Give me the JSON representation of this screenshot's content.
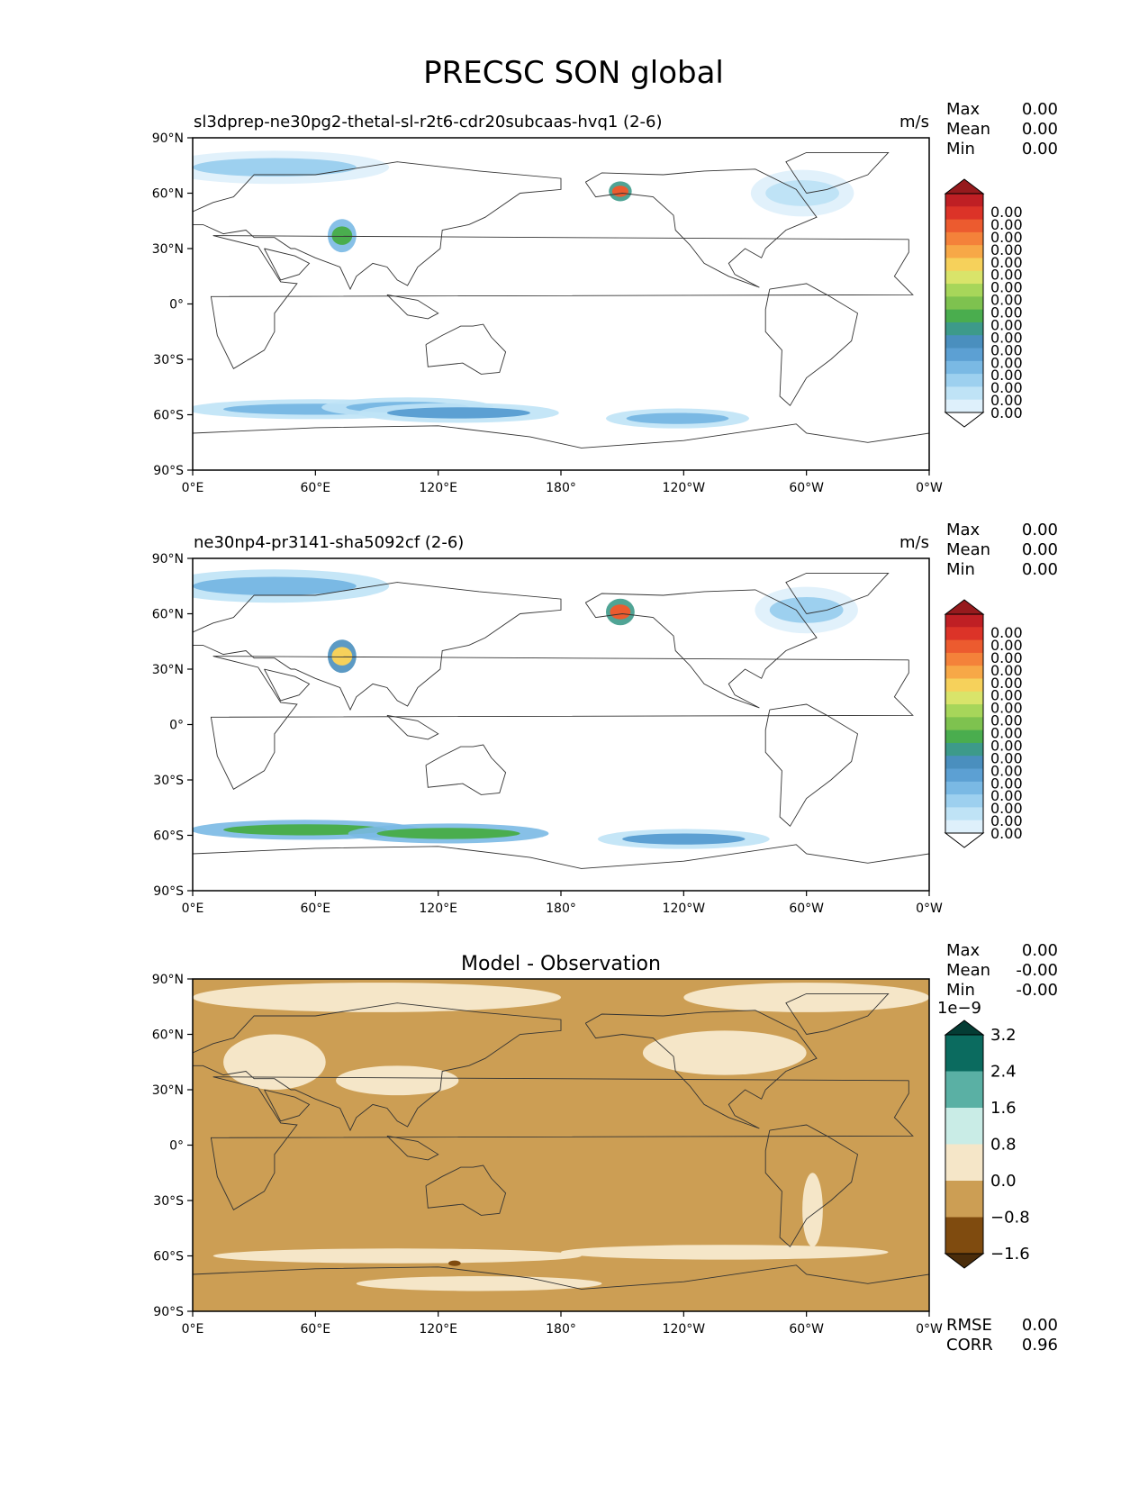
{
  "figure": {
    "title": "PRECSC SON global"
  },
  "axes": {
    "lat_ticks": [
      "90°N",
      "60°N",
      "30°N",
      "0°",
      "30°S",
      "60°S",
      "90°S"
    ],
    "lon_ticks": [
      "0°E",
      "60°E",
      "120°E",
      "180°",
      "120°W",
      "60°W",
      "0°W"
    ]
  },
  "colors": {
    "precip_levels": [
      "#ffffff",
      "#def0fb",
      "#bfe3f6",
      "#9dd0ef",
      "#7ab9e4",
      "#5ca0d3",
      "#4a8fbe",
      "#3d9a8a",
      "#4aad4e",
      "#7ec24f",
      "#a7d65a",
      "#d9e46a",
      "#f6d15b",
      "#f7a847",
      "#f4823a",
      "#ec5b2f",
      "#dc3328",
      "#bf1f24",
      "#961a1d"
    ],
    "diff_levels": [
      "#4a2c0a",
      "#7f4b0f",
      "#cc9e54",
      "#f5e6c8",
      "#c9ece6",
      "#5ab0a4",
      "#0b6b5f",
      "#043c34"
    ],
    "coastline": "#333333",
    "axis": "#000000"
  },
  "chart_data": [
    {
      "type": "heatmap",
      "panel": "model",
      "title": "sl3dprep-ne30pg2-thetal-sl-r2t6-cdr20subcaas-hvq1 (2-6)",
      "units": "m/s",
      "stats": [
        {
          "label": "Max",
          "value": "0.00"
        },
        {
          "label": "Mean",
          "value": "0.00"
        },
        {
          "label": "Min",
          "value": "0.00"
        }
      ],
      "colorbar_ticks": [
        "0.00",
        "0.00",
        "0.00",
        "0.00",
        "0.00",
        "0.00",
        "0.00",
        "0.00",
        "0.00",
        "0.00",
        "0.00",
        "0.00",
        "0.00",
        "0.00",
        "0.00",
        "0.00",
        "0.00"
      ],
      "colorbar_extend": "both",
      "xlim": [
        0,
        360
      ],
      "ylim": [
        -90,
        90
      ],
      "features": [
        {
          "lon": 60,
          "lat": -57,
          "w": 45,
          "h": 3,
          "level": 4
        },
        {
          "lon": 105,
          "lat": -56,
          "w": 30,
          "h": 3,
          "level": 4
        },
        {
          "lon": 130,
          "lat": -59,
          "w": 35,
          "h": 3,
          "level": 5
        },
        {
          "lon": 237,
          "lat": -62,
          "w": 25,
          "h": 3,
          "level": 4
        },
        {
          "lon": 40,
          "lat": 74,
          "w": 40,
          "h": 5,
          "level": 3
        },
        {
          "lon": 73,
          "lat": 37,
          "w": 5,
          "h": 5,
          "level": 8
        },
        {
          "lon": 209,
          "lat": 61,
          "w": 4,
          "h": 3,
          "level": 15
        },
        {
          "lon": 298,
          "lat": 60,
          "w": 18,
          "h": 7,
          "level": 2
        }
      ]
    },
    {
      "type": "heatmap",
      "panel": "observation",
      "title": "ne30np4-pr3141-sha5092cf (2-6)",
      "units": "m/s",
      "stats": [
        {
          "label": "Max",
          "value": "0.00"
        },
        {
          "label": "Mean",
          "value": "0.00"
        },
        {
          "label": "Min",
          "value": "0.00"
        }
      ],
      "colorbar_ticks": [
        "0.00",
        "0.00",
        "0.00",
        "0.00",
        "0.00",
        "0.00",
        "0.00",
        "0.00",
        "0.00",
        "0.00",
        "0.00",
        "0.00",
        "0.00",
        "0.00",
        "0.00",
        "0.00",
        "0.00"
      ],
      "colorbar_extend": "both",
      "xlim": [
        0,
        360
      ],
      "ylim": [
        -90,
        90
      ],
      "features": [
        {
          "lon": 55,
          "lat": -57,
          "w": 40,
          "h": 3,
          "level": 8
        },
        {
          "lon": 125,
          "lat": -59,
          "w": 35,
          "h": 3,
          "level": 8
        },
        {
          "lon": 240,
          "lat": -62,
          "w": 30,
          "h": 3,
          "level": 5
        },
        {
          "lon": 40,
          "lat": 75,
          "w": 40,
          "h": 5,
          "level": 4
        },
        {
          "lon": 73,
          "lat": 37,
          "w": 5,
          "h": 5,
          "level": 12
        },
        {
          "lon": 209,
          "lat": 61,
          "w": 5,
          "h": 4,
          "level": 15
        },
        {
          "lon": 300,
          "lat": 62,
          "w": 18,
          "h": 7,
          "level": 3
        }
      ]
    },
    {
      "type": "heatmap",
      "panel": "difference",
      "title": "Model - Observation",
      "units": "",
      "stats": [
        {
          "label": "Max",
          "value": "0.00"
        },
        {
          "label": "Mean",
          "value": "-0.00"
        },
        {
          "label": "Min",
          "value": "-0.00"
        }
      ],
      "colorbar_ticks": [
        "3.2",
        "2.4",
        "1.6",
        "0.8",
        "0.0",
        "−0.8",
        "−1.6"
      ],
      "colorbar_multiplier": "1e−9",
      "colorbar_extend": "both",
      "metrics": [
        {
          "label": "RMSE",
          "value": "0.00"
        },
        {
          "label": "CORR",
          "value": "0.96"
        }
      ],
      "xlim": [
        0,
        360
      ],
      "ylim": [
        -90,
        90
      ],
      "features": [
        {
          "lon": 90,
          "lat": 80,
          "w": 90,
          "h": 8,
          "level": 3
        },
        {
          "lon": 300,
          "lat": 80,
          "w": 60,
          "h": 8,
          "level": 3
        },
        {
          "lon": 40,
          "lat": 45,
          "w": 25,
          "h": 15,
          "level": 3
        },
        {
          "lon": 100,
          "lat": 35,
          "w": 30,
          "h": 8,
          "level": 3
        },
        {
          "lon": 260,
          "lat": 50,
          "w": 40,
          "h": 12,
          "level": 3
        },
        {
          "lon": 303,
          "lat": -35,
          "w": 5,
          "h": 20,
          "level": 3
        },
        {
          "lon": 100,
          "lat": -60,
          "w": 90,
          "h": 4,
          "level": 3
        },
        {
          "lon": 260,
          "lat": -58,
          "w": 80,
          "h": 4,
          "level": 3
        },
        {
          "lon": 140,
          "lat": -75,
          "w": 60,
          "h": 4,
          "level": 3
        },
        {
          "lon": 128,
          "lat": -64,
          "w": 3,
          "h": 1.5,
          "level": 1
        }
      ]
    }
  ]
}
